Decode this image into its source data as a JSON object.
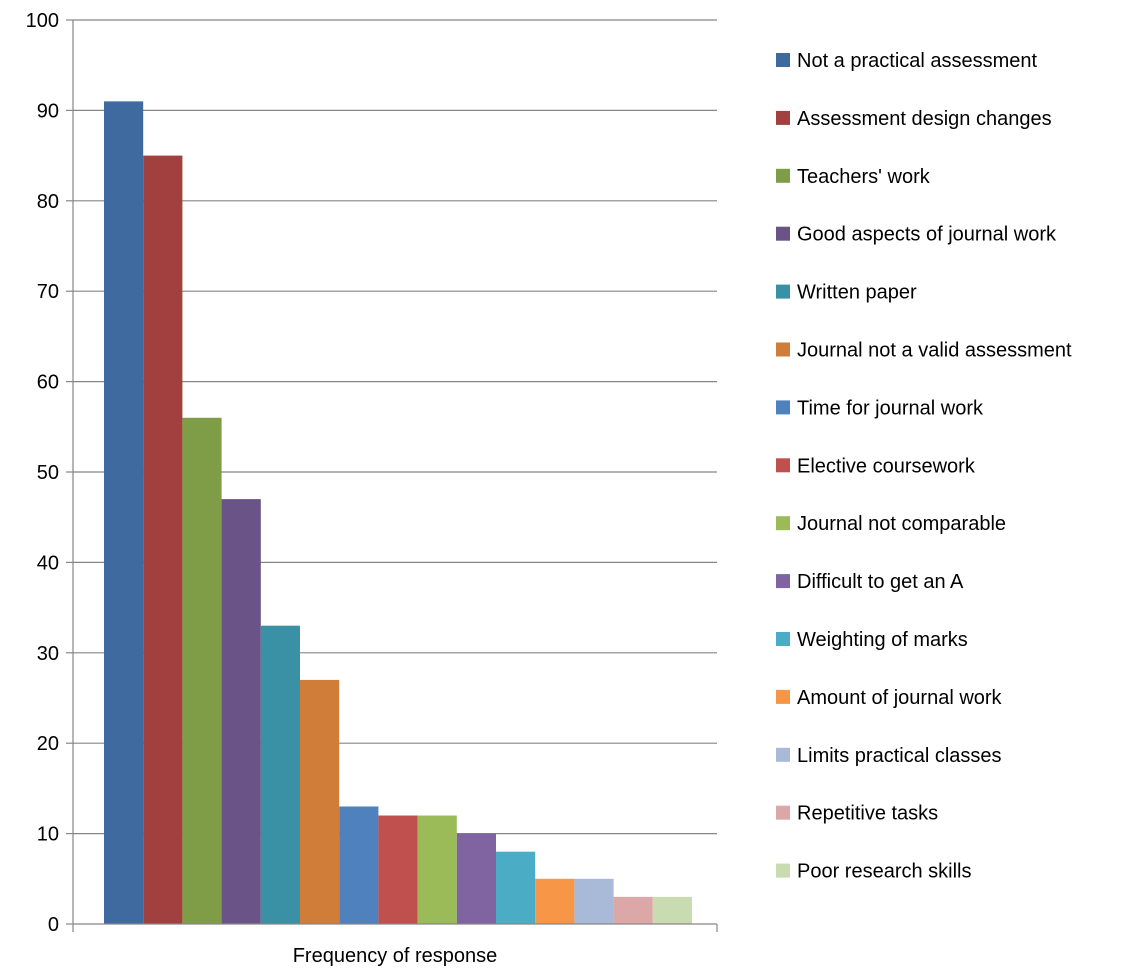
{
  "chart_data": {
    "type": "bar",
    "title": "",
    "xlabel": "Frequency of response",
    "ylabel": "",
    "ylim": [
      0,
      100
    ],
    "yticks": [
      0,
      10,
      20,
      30,
      40,
      50,
      60,
      70,
      80,
      90,
      100
    ],
    "grid": true,
    "legend_position": "right",
    "categories": [
      "Frequency of response"
    ],
    "series": [
      {
        "name": "Not a practical assessment",
        "values": [
          91
        ],
        "color": "#3F6A9F"
      },
      {
        "name": "Assessment design changes",
        "values": [
          85
        ],
        "color": "#A1403F"
      },
      {
        "name": "Teachers' work",
        "values": [
          56
        ],
        "color": "#7F9C47"
      },
      {
        "name": "Good aspects of journal work",
        "values": [
          47
        ],
        "color": "#6A5386"
      },
      {
        "name": "Written paper",
        "values": [
          33
        ],
        "color": "#3A90A4"
      },
      {
        "name": "Journal not a valid assessment",
        "values": [
          27
        ],
        "color": "#D07D3A"
      },
      {
        "name": "Time for journal work",
        "values": [
          13
        ],
        "color": "#4F81BD"
      },
      {
        "name": "Elective coursework",
        "values": [
          12
        ],
        "color": "#C0504D"
      },
      {
        "name": "Journal not comparable",
        "values": [
          12
        ],
        "color": "#9BBB59"
      },
      {
        "name": "Difficult to get an A",
        "values": [
          10
        ],
        "color": "#8064A2"
      },
      {
        "name": "Weighting of marks",
        "values": [
          8
        ],
        "color": "#4BACC6"
      },
      {
        "name": "Amount of journal work",
        "values": [
          5
        ],
        "color": "#F79646"
      },
      {
        "name": "Limits practical classes",
        "values": [
          5
        ],
        "color": "#A9B9D8"
      },
      {
        "name": "Repetitive tasks",
        "values": [
          3
        ],
        "color": "#DCA8A7"
      },
      {
        "name": "Poor research skills",
        "values": [
          3
        ],
        "color": "#C9DBB0"
      }
    ]
  }
}
